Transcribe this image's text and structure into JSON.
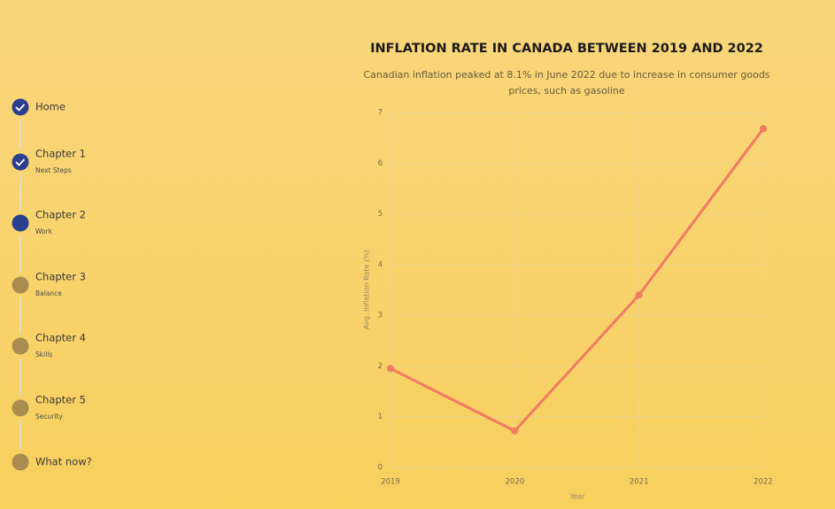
{
  "nav": {
    "items": [
      {
        "label": "Home"
      },
      {
        "label": "Chapter 1",
        "sub": "Next Steps"
      },
      {
        "label": "Chapter 2",
        "sub": "Work"
      },
      {
        "label": "Chapter 3",
        "sub": "Balance"
      },
      {
        "label": "Chapter 4",
        "sub": "Skills"
      },
      {
        "label": "Chapter 5",
        "sub": "Security"
      },
      {
        "label": "What now?"
      }
    ]
  },
  "chart_data": {
    "type": "line",
    "title": "INFLATION RATE IN CANADA BETWEEN 2019 AND 2022",
    "subtitle": "Canadian inflation peaked at 8.1% in June 2022 due to increase in consumer goods prices, such as gasoline",
    "x_label": "Year",
    "y_label": "Avg. Inflation Rate (%)",
    "x": [
      2019,
      2020,
      2021,
      2022
    ],
    "values": [
      1.95,
      0.72,
      3.4,
      6.68
    ],
    "color": "#f07a62",
    "xlim": [
      2019,
      2022
    ],
    "xticks": [
      2019,
      2020,
      2021,
      2022
    ],
    "ylim": [
      0,
      7
    ],
    "yticks": [
      0,
      1,
      2,
      3,
      4,
      5,
      6,
      7
    ],
    "grid": true
  }
}
